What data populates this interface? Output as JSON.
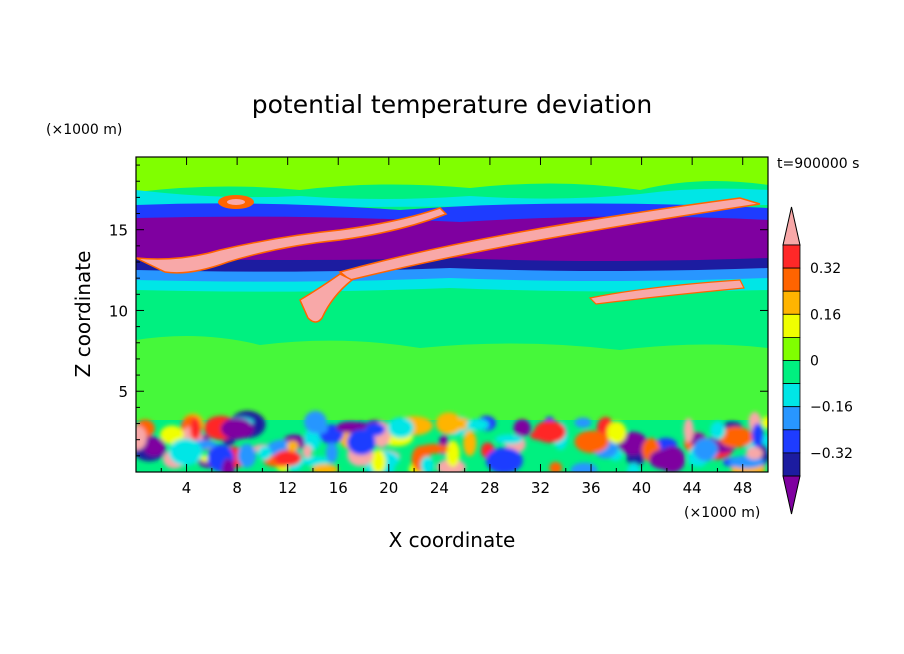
{
  "chart_data": {
    "type": "heatmap",
    "title": "potential temperature deviation",
    "xlabel": "X coordinate",
    "ylabel": "Z coordinate",
    "x_unit": "(×1000 m)",
    "y_unit": "(×1000 m)",
    "time_label": "t=900000 s",
    "xlim": [
      0,
      50
    ],
    "ylim": [
      0,
      19.5
    ],
    "x_ticks": [
      "4",
      "8",
      "12",
      "16",
      "20",
      "24",
      "28",
      "32",
      "36",
      "40",
      "44",
      "48"
    ],
    "y_ticks": [
      "5",
      "10",
      "15"
    ],
    "colorbar": {
      "labels": [
        "0.32",
        "0.16",
        "0",
        "-0.16",
        "-0.32"
      ],
      "colors": [
        "#7f00a0",
        "#1c1ca0",
        "#1e3cff",
        "#2896ff",
        "#00e6e6",
        "#00f080",
        "#80ff00",
        "#f0ff00",
        "#ffb400",
        "#ff6400",
        "#ff2828",
        "#f8a8a8"
      ]
    },
    "layers": [
      {
        "z_top": 19.5,
        "z_bottom": 17.0,
        "level": "0"
      },
      {
        "z_top": 17.0,
        "z_bottom": 16.2,
        "level": "-0.16"
      },
      {
        "z_top": 16.2,
        "z_bottom": 13.0,
        "level": "-0.32"
      },
      {
        "z_top": 13.0,
        "z_bottom": 12.0,
        "level": "-0.16"
      },
      {
        "z_top": 12.0,
        "z_bottom": 3.2,
        "level": "0"
      },
      {
        "z_top": 3.2,
        "z_bottom": 0.0,
        "level": "mixed"
      }
    ]
  }
}
